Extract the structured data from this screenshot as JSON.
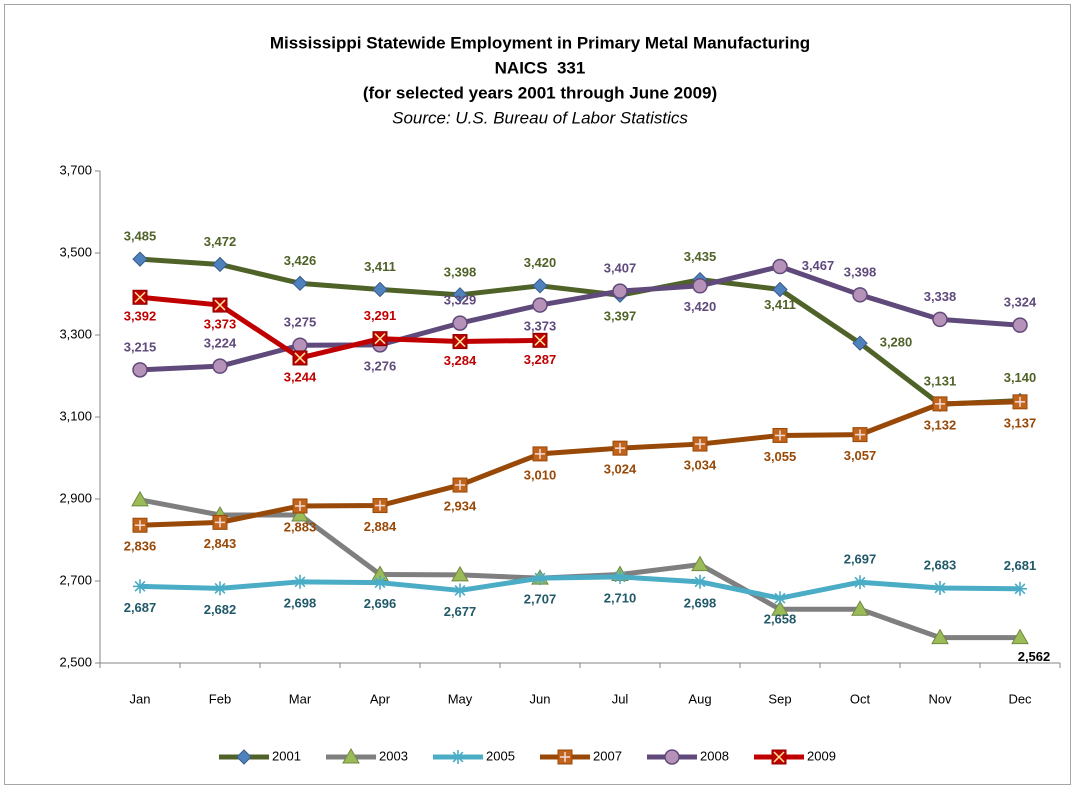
{
  "chart_data": {
    "type": "line",
    "title": "Mississippi Statewide Employment in Primary Metal Manufacturing",
    "subtitle": [
      "NAICS  331",
      "(for selected years 2001 through June 2009)"
    ],
    "source": "Source: U.S. Bureau of Labor Statistics",
    "categories": [
      "Jan",
      "Feb",
      "Mar",
      "Apr",
      "May",
      "Jun",
      "Jul",
      "Aug",
      "Sep",
      "Oct",
      "Nov",
      "Dec"
    ],
    "ylim": [
      2500,
      3700
    ],
    "yticks": [
      {
        "value": 2500,
        "label": "2,500"
      },
      {
        "value": 2700,
        "label": "2,700"
      },
      {
        "value": 2900,
        "label": "2,900"
      },
      {
        "value": 3100,
        "label": "3,100"
      },
      {
        "value": 3300,
        "label": "3,300"
      },
      {
        "value": 3500,
        "label": "3,500"
      },
      {
        "value": 3700,
        "label": "3,700"
      }
    ],
    "grid": false,
    "legend": "bottom",
    "series": [
      {
        "name": "2001",
        "color": "#4f6228",
        "label_color": "#4f6228",
        "marker": "diamond",
        "marker_color": "#4f81bd",
        "values": [
          3485,
          3472,
          3426,
          3411,
          3398,
          3420,
          3397,
          3435,
          3411,
          3280,
          3131,
          3140
        ],
        "value_labels": [
          "3,485",
          "3,472",
          "3,426",
          "3,411",
          "3,398",
          "3,420",
          "3,397",
          "3,435",
          "3,411",
          "3,280",
          "3,131",
          "3,140"
        ]
      },
      {
        "name": "2003",
        "color": "#7f7f7f",
        "label_color": "#000000",
        "marker": "triangle",
        "marker_color": "#9bbb59",
        "values": [
          2898,
          2861,
          2861,
          2716,
          2715,
          2707,
          2716,
          2740,
          2631,
          2631,
          2562,
          2562
        ],
        "value_labels": [
          null,
          null,
          null,
          null,
          null,
          null,
          null,
          null,
          null,
          null,
          null,
          "2,562"
        ]
      },
      {
        "name": "2005",
        "color": "#4bacc6",
        "label_color": "#215968",
        "marker": "star",
        "marker_color": "#4bacc6",
        "values": [
          2687,
          2682,
          2698,
          2696,
          2677,
          2707,
          2710,
          2698,
          2658,
          2697,
          2683,
          2681
        ],
        "value_labels": [
          "2,687",
          "2,682",
          "2,698",
          "2,696",
          "2,677",
          "2,707",
          "2,710",
          "2,698",
          "2,658",
          "2,697",
          "2,683",
          "2,681"
        ]
      },
      {
        "name": "2007",
        "color": "#984807",
        "label_color": "#984807",
        "marker": "plus",
        "marker_color": "#c0631b",
        "values": [
          2836,
          2843,
          2883,
          2884,
          2934,
          3010,
          3024,
          3034,
          3055,
          3057,
          3132,
          3137
        ],
        "value_labels": [
          "2,836",
          "2,843",
          "2,883",
          "2,884",
          "2,934",
          "3,010",
          "3,024",
          "3,034",
          "3,055",
          "3,057",
          "3,132",
          "3,137"
        ]
      },
      {
        "name": "2008",
        "color": "#604a7b",
        "label_color": "#604a7b",
        "marker": "circle",
        "marker_color": "#b691b8",
        "values": [
          3215,
          3224,
          3275,
          3276,
          3329,
          3373,
          3407,
          3420,
          3467,
          3398,
          3338,
          3324
        ],
        "value_labels": [
          "3,215",
          "3,224",
          "3,275",
          "3,276",
          "3,329",
          "3,373",
          "3,407",
          "3,420",
          "3,467",
          "3,398",
          "3,338",
          "3,324"
        ]
      },
      {
        "name": "2009",
        "color": "#c00000",
        "label_color": "#c00000",
        "marker": "cross",
        "marker_color": "#c00000",
        "values": [
          3392,
          3373,
          3244,
          3291,
          3284,
          3287,
          null,
          null,
          null,
          null,
          null,
          null
        ],
        "value_labels": [
          "3,392",
          "3,373",
          "3,244",
          "3,291",
          "3,284",
          "3,287",
          null,
          null,
          null,
          null,
          null,
          null
        ]
      }
    ]
  }
}
